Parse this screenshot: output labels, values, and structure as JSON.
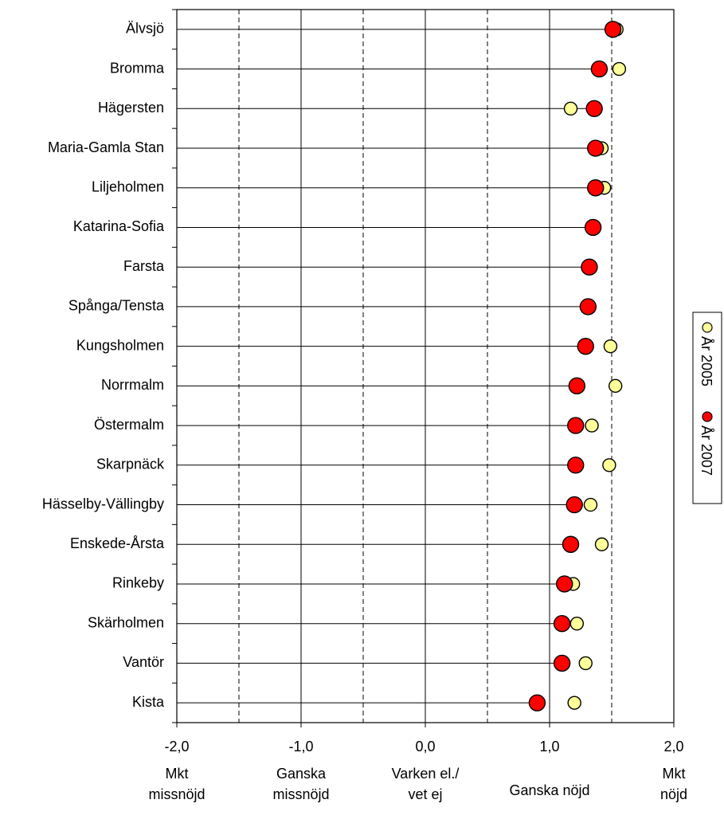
{
  "chart_data": {
    "type": "scatter",
    "orientation": "horizontal",
    "categories": [
      "Älvsjö",
      "Bromma",
      "Hägersten",
      "Maria-Gamla Stan",
      "Liljeholmen",
      "Katarina-Sofia",
      "Farsta",
      "Spånga/Tensta",
      "Kungsholmen",
      "Norrmalm",
      "Östermalm",
      "Skarpnäck",
      "Hässelby-Vällingby",
      "Enskede-Årsta",
      "Rinkeby",
      "Skärholmen",
      "Vantör",
      "Kista"
    ],
    "series": [
      {
        "name": "År 2005",
        "color": "#ffff99",
        "values": [
          1.54,
          1.56,
          1.17,
          1.42,
          1.44,
          null,
          null,
          null,
          1.49,
          1.53,
          1.34,
          1.48,
          1.33,
          1.42,
          1.19,
          1.22,
          1.29,
          1.2
        ]
      },
      {
        "name": "År 2007",
        "color": "#ff0000",
        "values": [
          1.51,
          1.4,
          1.36,
          1.37,
          1.37,
          1.35,
          1.32,
          1.31,
          1.29,
          1.22,
          1.21,
          1.21,
          1.2,
          1.17,
          1.12,
          1.1,
          1.1,
          0.9
        ]
      }
    ],
    "xlim": [
      -2.0,
      2.0
    ],
    "xticks": [
      "-2,0",
      "-1,0",
      "0,0",
      "1,0",
      "2,0"
    ],
    "xtick_values": [
      -2,
      -1,
      0,
      1,
      2
    ],
    "dashed_gridlines": [
      -1.5,
      -0.5,
      0.5,
      1.5
    ],
    "solid_gridlines": [
      -1,
      0,
      1
    ],
    "scale_labels": [
      {
        "x": -2.0,
        "lines": [
          "Mkt",
          "missnöjd"
        ]
      },
      {
        "x": -1.0,
        "lines": [
          "Ganska",
          "missnöjd"
        ]
      },
      {
        "x": 0.0,
        "lines": [
          "Varken el./",
          "vet ej"
        ]
      },
      {
        "x": 1.0,
        "lines": [
          "Ganska nöjd"
        ]
      },
      {
        "x": 2.0,
        "lines": [
          "Mkt",
          "nöjd"
        ]
      }
    ],
    "legend": {
      "placement": "right",
      "rotated": true
    }
  }
}
